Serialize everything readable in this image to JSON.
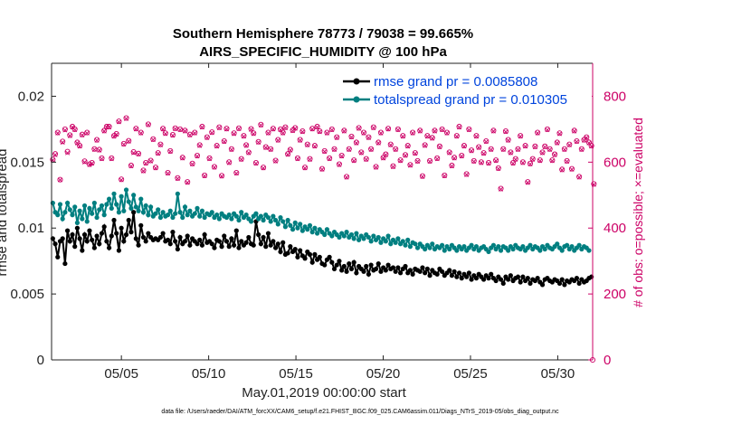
{
  "chart_data": {
    "type": "line",
    "title_line1": "Southern Hemisphere 78773 / 79038 = 99.665%",
    "title_line2": "AIRS_SPECIFIC_HUMIDITY @ 100 hPa",
    "xlabel": "May.01,2019 00:00:00 start",
    "ylabel_left": "rmse and totalspread",
    "ylabel_right": "# of obs: o=possible; ×=evaluated",
    "footnote": "data file: /Users/raeder/DAI/ATM_forcXX/CAM6_setup/f.e21.FHIST_BGC.f09_025.CAM6assim.011/Diags_NTrS_2019-05/obs_diag_output.nc",
    "xlim": [
      1.0,
      32.0
    ],
    "ylim_left": [
      0,
      0.0225
    ],
    "ylim_right": [
      0,
      900
    ],
    "x_ticks": [
      5,
      10,
      15,
      20,
      25,
      30
    ],
    "x_tick_labels": [
      "05/05",
      "05/10",
      "05/15",
      "05/20",
      "05/25",
      "05/30"
    ],
    "y_ticks_left": [
      0,
      0.005,
      0.01,
      0.015,
      0.02
    ],
    "y_tick_labels_left": [
      "0",
      "0.005",
      "0.01",
      "0.015",
      "0.02"
    ],
    "y_ticks_right": [
      0,
      200,
      400,
      600,
      800
    ],
    "y_tick_labels_right": [
      "0",
      "200",
      "400",
      "600",
      "800"
    ],
    "colors": {
      "rmse": "#000000",
      "spread": "#007f80",
      "obs": "#cc0066",
      "legend_text": "#0044dd"
    },
    "series": [
      {
        "name": "rmse grand pr = 0.0085808",
        "axis": "left",
        "values": [
          0.0092,
          0.0088,
          0.0078,
          0.009,
          0.0092,
          0.0073,
          0.0098,
          0.009,
          0.0095,
          0.0086,
          0.01,
          0.0092,
          0.0083,
          0.0095,
          0.009,
          0.0098,
          0.0091,
          0.0085,
          0.0094,
          0.0088,
          0.0096,
          0.0101,
          0.009,
          0.0085,
          0.0094,
          0.0106,
          0.0096,
          0.0083,
          0.01,
          0.009,
          0.0095,
          0.0106,
          0.0097,
          0.0112,
          0.0092,
          0.0087,
          0.0102,
          0.0093,
          0.009,
          0.0096,
          0.0093,
          0.0091,
          0.0092,
          0.0091,
          0.0093,
          0.0096,
          0.009,
          0.0091,
          0.0088,
          0.0097,
          0.009,
          0.0084,
          0.0093,
          0.0088,
          0.009,
          0.0094,
          0.0087,
          0.0092,
          0.009,
          0.0088,
          0.0091,
          0.0087,
          0.0095,
          0.0089,
          0.009,
          0.0088,
          0.0085,
          0.0091,
          0.009,
          0.0086,
          0.0094,
          0.009,
          0.0086,
          0.0092,
          0.0087,
          0.0098,
          0.0085,
          0.009,
          0.0087,
          0.0089,
          0.0093,
          0.0088,
          0.0087,
          0.0105,
          0.0095,
          0.0088,
          0.0093,
          0.0086,
          0.0096,
          0.0087,
          0.009,
          0.0085,
          0.0088,
          0.0082,
          0.0089,
          0.008,
          0.0081,
          0.0086,
          0.0082,
          0.0084,
          0.0078,
          0.0083,
          0.0079,
          0.0077,
          0.0082,
          0.008,
          0.0074,
          0.008,
          0.0076,
          0.0078,
          0.0073,
          0.0072,
          0.0076,
          0.0078,
          0.0074,
          0.0069,
          0.0072,
          0.0075,
          0.0068,
          0.0071,
          0.0067,
          0.0073,
          0.0069,
          0.0074,
          0.0066,
          0.0071,
          0.0069,
          0.0067,
          0.0071,
          0.0065,
          0.0072,
          0.0068,
          0.0069,
          0.0073,
          0.0067,
          0.007,
          0.0068,
          0.0072,
          0.0069,
          0.007,
          0.0067,
          0.007,
          0.0066,
          0.0069,
          0.0071,
          0.0066,
          0.0068,
          0.0065,
          0.0069,
          0.0068,
          0.0067,
          0.007,
          0.0066,
          0.0069,
          0.0064,
          0.0068,
          0.0066,
          0.0065,
          0.0069,
          0.0067,
          0.0064,
          0.0066,
          0.0068,
          0.0064,
          0.0067,
          0.0063,
          0.0066,
          0.0062,
          0.0065,
          0.0063,
          0.0066,
          0.0061,
          0.0064,
          0.0062,
          0.0065,
          0.0063,
          0.0061,
          0.0064,
          0.0062,
          0.0065,
          0.0062,
          0.006,
          0.0063,
          0.0061,
          0.0058,
          0.0063,
          0.0061,
          0.0064,
          0.006,
          0.0062,
          0.0063,
          0.0059,
          0.0063,
          0.006,
          0.0062,
          0.0058,
          0.0061,
          0.006,
          0.0062,
          0.0059,
          0.0057,
          0.0061,
          0.0062,
          0.006,
          0.0059,
          0.0061,
          0.006,
          0.0058,
          0.0061,
          0.0057,
          0.006,
          0.0059,
          0.0061,
          0.006,
          0.0062,
          0.0058,
          0.0061,
          0.0059,
          0.006,
          0.0062,
          0.0063
        ]
      },
      {
        "name": "totalspread grand pr = 0.010305",
        "axis": "left",
        "values": [
          0.0119,
          0.0112,
          0.011,
          0.0118,
          0.0107,
          0.0112,
          0.0119,
          0.0114,
          0.011,
          0.0116,
          0.0104,
          0.0113,
          0.0107,
          0.0117,
          0.0105,
          0.0115,
          0.0111,
          0.0119,
          0.0108,
          0.0114,
          0.0117,
          0.011,
          0.0118,
          0.0122,
          0.0115,
          0.0126,
          0.0118,
          0.0112,
          0.0124,
          0.0113,
          0.0129,
          0.012,
          0.0115,
          0.0125,
          0.0116,
          0.0113,
          0.0122,
          0.0112,
          0.0117,
          0.011,
          0.0116,
          0.0109,
          0.0111,
          0.0114,
          0.0108,
          0.0112,
          0.0109,
          0.011,
          0.0113,
          0.0108,
          0.0111,
          0.0126,
          0.0112,
          0.0108,
          0.0116,
          0.011,
          0.0113,
          0.0109,
          0.0111,
          0.0115,
          0.0109,
          0.0113,
          0.0108,
          0.0111,
          0.011,
          0.0112,
          0.0108,
          0.011,
          0.0107,
          0.0111,
          0.0109,
          0.0108,
          0.011,
          0.0107,
          0.0111,
          0.0109,
          0.0106,
          0.0112,
          0.0108,
          0.011,
          0.0107,
          0.0105,
          0.0109,
          0.0111,
          0.0107,
          0.0109,
          0.0106,
          0.011,
          0.0108,
          0.0105,
          0.0109,
          0.0106,
          0.0103,
          0.0108,
          0.0105,
          0.0101,
          0.0106,
          0.0102,
          0.0099,
          0.0104,
          0.01,
          0.0103,
          0.0098,
          0.0101,
          0.0099,
          0.0102,
          0.0097,
          0.01,
          0.0096,
          0.0099,
          0.0097,
          0.0095,
          0.0099,
          0.0096,
          0.0094,
          0.0097,
          0.0095,
          0.0093,
          0.0096,
          0.0094,
          0.0097,
          0.0093,
          0.0095,
          0.0092,
          0.0096,
          0.0091,
          0.0094,
          0.0092,
          0.0095,
          0.0093,
          0.009,
          0.0094,
          0.0091,
          0.0093,
          0.0089,
          0.0092,
          0.009,
          0.0094,
          0.0088,
          0.0091,
          0.0089,
          0.0092,
          0.0088,
          0.009,
          0.0087,
          0.0091,
          0.0086,
          0.0089,
          0.0088,
          0.0085,
          0.0088,
          0.0086,
          0.0084,
          0.0087,
          0.0085,
          0.0088,
          0.0084,
          0.0086,
          0.0085,
          0.0087,
          0.0083,
          0.0086,
          0.0084,
          0.0087,
          0.0085,
          0.0083,
          0.0086,
          0.0084,
          0.0086,
          0.0083,
          0.0085,
          0.0087,
          0.0084,
          0.0086,
          0.0083,
          0.0085,
          0.0086,
          0.0084,
          0.0082,
          0.0085,
          0.0087,
          0.0084,
          0.0086,
          0.0083,
          0.0086,
          0.0085,
          0.0083,
          0.0086,
          0.0084,
          0.0087,
          0.0085,
          0.0084,
          0.0086,
          0.0083,
          0.0085,
          0.0087,
          0.0084,
          0.0086,
          0.0085,
          0.0083,
          0.0086,
          0.0084,
          0.0087,
          0.0085,
          0.0084,
          0.0086,
          0.0088,
          0.0085,
          0.0083,
          0.0086,
          0.0087,
          0.0084,
          0.0086,
          0.0083,
          0.0085,
          0.0087,
          0.0084,
          0.0086,
          0.0085,
          0.0083
        ]
      }
    ],
    "obs_counts": {
      "possible": [
        608,
        625,
        690,
        547,
        663,
        700,
        632,
        682,
        708,
        700,
        660,
        650,
        684,
        603,
        690,
        594,
        598,
        640,
        668,
        638,
        612,
        696,
        708,
        708,
        612,
        680,
        686,
        724,
        548,
        656,
        734,
        665,
        590,
        631,
        702,
        626,
        690,
        575,
        598,
        715,
        605,
        670,
        584,
        628,
        654,
        702,
        688,
        568,
        634,
        683,
        703,
        552,
        700,
        614,
        696,
        540,
        684,
        596,
        690,
        620,
        652,
        708,
        560,
        676,
        612,
        691,
        586,
        650,
        706,
        559,
        664,
        702,
        600,
        640,
        688,
        568,
        703,
        610,
        680,
        652,
        630,
        701,
        688,
        598,
        662,
        714,
        584,
        646,
        690,
        640,
        702,
        605,
        668,
        700,
        690,
        706,
        625,
        638,
        697,
        704,
        612,
        668,
        694,
        584,
        654,
        610,
        702,
        650,
        708,
        694,
        580,
        634,
        690,
        612,
        700,
        640,
        676,
        594,
        620,
        696,
        556,
        640,
        678,
        606,
        660,
        704,
        630,
        690,
        610,
        676,
        640,
        706,
        586,
        660,
        690,
        614,
        624,
        702,
        654,
        588,
        640,
        700,
        606,
        680,
        622,
        650,
        592,
        690,
        628,
        604,
        696,
        558,
        652,
        680,
        604,
        674,
        696,
        612,
        648,
        700,
        560,
        690,
        630,
        590,
        614,
        680,
        708,
        620,
        650,
        564,
        700,
        636,
        604,
        680,
        646,
        600,
        628,
        664,
        598,
        640,
        696,
        606,
        582,
        520,
        640,
        694,
        668,
        630,
        598,
        610,
        640,
        680,
        600,
        650,
        540,
        596,
        610,
        648,
        690,
        606,
        630,
        648,
        700,
        640,
        606,
        624,
        660,
        688,
        578,
        640,
        604,
        654,
        580,
        696,
        664,
        556,
        640,
        668,
        676,
        660,
        650,
        534
      ],
      "evaluated": [
        606,
        622,
        688,
        546,
        660,
        697,
        628,
        680,
        706,
        698,
        658,
        648,
        682,
        600,
        688,
        592,
        596,
        638,
        666,
        636,
        610,
        694,
        706,
        706,
        610,
        678,
        684,
        722,
        546,
        654,
        732,
        663,
        588,
        628,
        700,
        624,
        688,
        573,
        596,
        713,
        603,
        668,
        582,
        626,
        652,
        700,
        686,
        566,
        632,
        681,
        701,
        550,
        698,
        612,
        694,
        538,
        682,
        594,
        688,
        618,
        650,
        706,
        558,
        674,
        610,
        689,
        584,
        648,
        704,
        557,
        662,
        700,
        598,
        638,
        686,
        566,
        701,
        608,
        678,
        650,
        628,
        699,
        686,
        596,
        660,
        712,
        582,
        644,
        688,
        638,
        700,
        603,
        666,
        698,
        688,
        704,
        623,
        636,
        695,
        702,
        610,
        666,
        692,
        582,
        652,
        608,
        700,
        648,
        706,
        692,
        578,
        632,
        688,
        610,
        698,
        638,
        674,
        592,
        618,
        694,
        554,
        638,
        676,
        604,
        658,
        702,
        628,
        688,
        608,
        674,
        638,
        704,
        584,
        658,
        688,
        612,
        622,
        700,
        652,
        586,
        638,
        698,
        604,
        678,
        620,
        648,
        590,
        688,
        626,
        602,
        694,
        556,
        650,
        678,
        602,
        672,
        694,
        610,
        646,
        698,
        558,
        688,
        628,
        588,
        612,
        678,
        706,
        618,
        648,
        562,
        698,
        634,
        602,
        678,
        644,
        598,
        626,
        662,
        596,
        638,
        694,
        604,
        580,
        518,
        638,
        692,
        666,
        628,
        596,
        608,
        638,
        678,
        598,
        648,
        538,
        594,
        608,
        646,
        688,
        604,
        628,
        646,
        698,
        638,
        604,
        622,
        658,
        686,
        576,
        638,
        602,
        652,
        578,
        694,
        662,
        554,
        638,
        666,
        674,
        658,
        648,
        532
      ]
    }
  }
}
